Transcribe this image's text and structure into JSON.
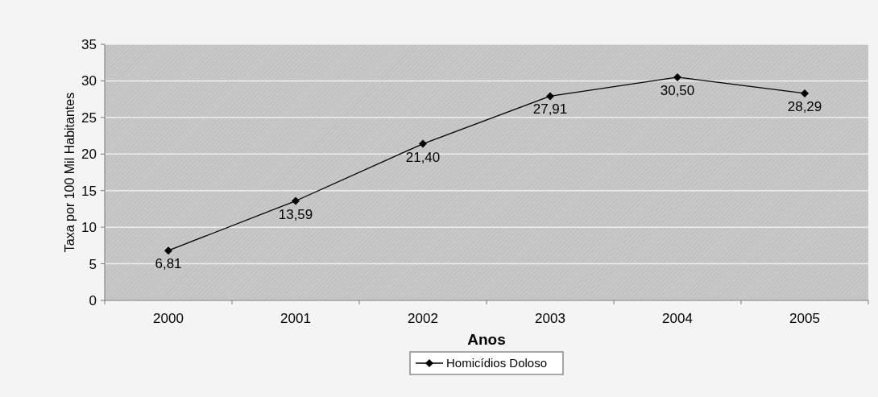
{
  "chart_data": {
    "type": "line",
    "xlabel": "Anos",
    "ylabel": "Taxa por 100 Mil Habitantes",
    "categories": [
      "2000",
      "2001",
      "2002",
      "2003",
      "2004",
      "2005"
    ],
    "series": [
      {
        "name": "Homicídios Doloso",
        "color": "#000000",
        "values": [
          6.81,
          13.59,
          21.4,
          27.91,
          30.5,
          28.29
        ]
      }
    ],
    "value_labels": [
      "6,81",
      "13,59",
      "21,40",
      "27,91",
      "30,50",
      "28,29"
    ],
    "ylim": [
      0,
      35
    ],
    "yticks": [
      0,
      5,
      10,
      15,
      20,
      25,
      30,
      35
    ],
    "grid": "y",
    "legend": "bottom",
    "marker": "diamond",
    "line_style": "solid"
  }
}
